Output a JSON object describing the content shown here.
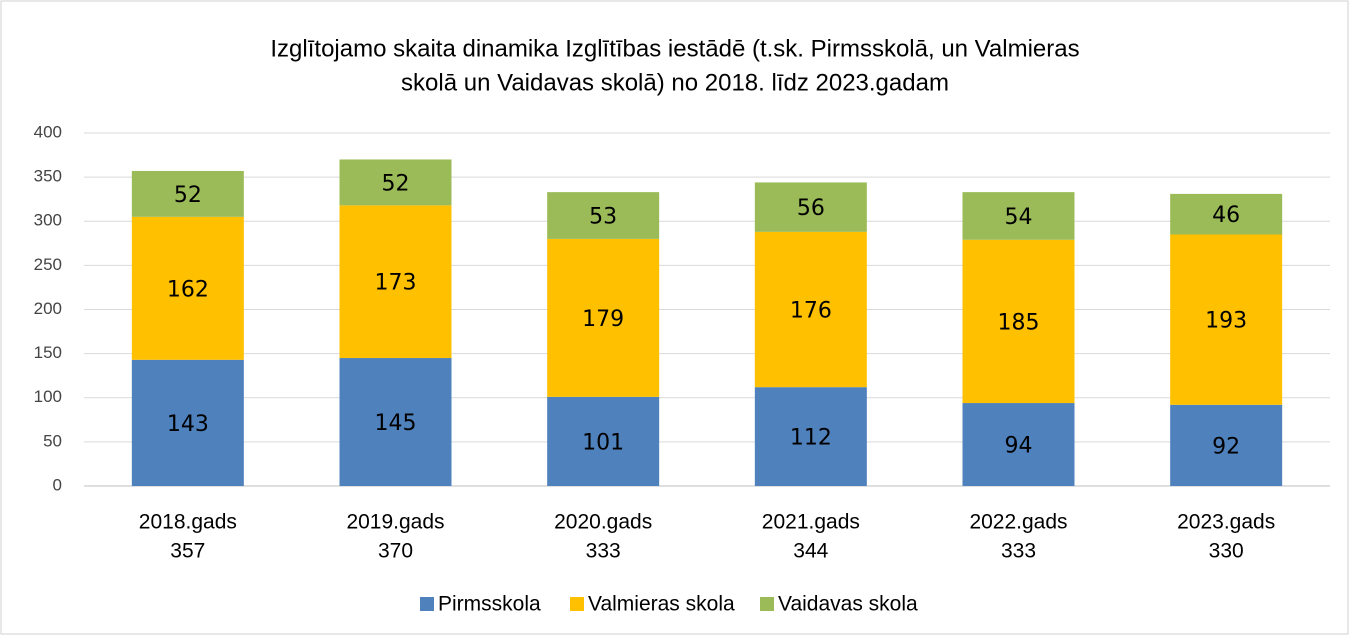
{
  "chart_data": {
    "type": "stacked_bar",
    "title": [
      "Izglītojamo skaita dinamika Izglītības iestādē (t.sk. Pirmsskolā, un Valmieras",
      "skolā un Vaidavas skolā) no 2018. līdz 2023.gadam"
    ],
    "categories": [
      "2018.gads",
      "2019.gads",
      "2020.gads",
      "2021.gads",
      "2022.gads",
      "2023.gads"
    ],
    "totals": [
      357,
      370,
      333,
      344,
      333,
      330
    ],
    "series": [
      {
        "name": "Pirmsskola",
        "color": "#4f81bd",
        "values": [
          143,
          145,
          101,
          112,
          94,
          92
        ]
      },
      {
        "name": "Valmieras skola",
        "color": "#ffc000",
        "values": [
          162,
          173,
          179,
          176,
          185,
          193
        ]
      },
      {
        "name": "Vaidavas skola",
        "color": "#9bbb59",
        "values": [
          52,
          52,
          53,
          56,
          54,
          46
        ]
      }
    ],
    "ylim": [
      0,
      400
    ],
    "yticks": [
      0,
      50,
      100,
      150,
      200,
      250,
      300,
      350,
      400
    ],
    "grid": true,
    "legend": "bottom"
  }
}
